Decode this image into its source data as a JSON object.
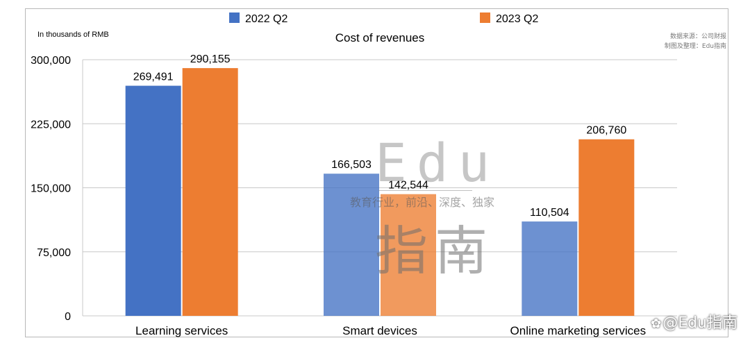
{
  "chart_data": {
    "type": "bar",
    "title": "Cost of revenues",
    "unit_label": "In thousands of RMB",
    "categories": [
      "Learning services",
      "Smart devices",
      "Online marketing services"
    ],
    "series": [
      {
        "name": "2022 Q2",
        "color": "#4472c4",
        "values": [
          269491,
          166503,
          110504
        ],
        "labels": [
          "269,491",
          "166,503",
          "110,504"
        ]
      },
      {
        "name": "2023 Q2",
        "color": "#ed7d31",
        "values": [
          290155,
          142544,
          206760
        ],
        "labels": [
          "290,155",
          "142,544",
          "206,760"
        ]
      }
    ],
    "yticks": [
      0,
      75000,
      150000,
      225000,
      300000
    ],
    "ytick_labels": [
      "0",
      "75,000",
      "150,000",
      "225,000",
      "300,000"
    ],
    "ylim": [
      0,
      300000
    ],
    "grid": true,
    "legend": "top-center"
  },
  "source_note": [
    "数据来源：公司财报",
    "制图及整理：Edu指南"
  ],
  "watermark": {
    "latin": "Edu",
    "tagline": "教育行业，前沿、深度、独家",
    "chinese": "指南"
  },
  "corner_mark": "@Edu指南"
}
